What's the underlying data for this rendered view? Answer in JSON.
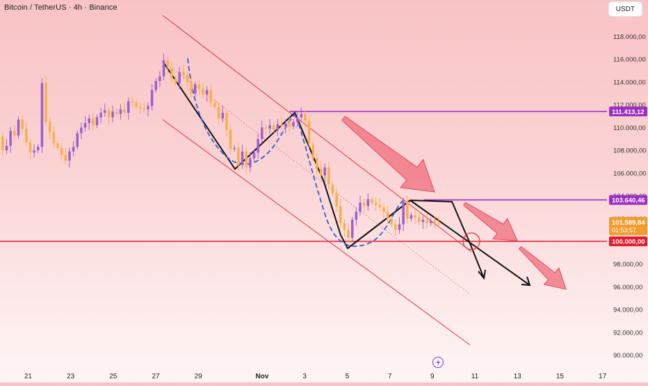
{
  "header": {
    "symbol": "Bitcoin / TetherUS · 4h · Binance",
    "currency_button": "USDT"
  },
  "colors": {
    "bull": "#9c5fd0",
    "bear": "#f5b04a",
    "channel": "#e2313f",
    "level_purple": "#9b2ec4",
    "level_red": "#e51c2e",
    "price_tag": "#f39c2f",
    "pattern_blue": "#2b5fd6",
    "arrow_pink": "#ef6a78"
  },
  "chart_data": {
    "type": "candlestick",
    "pair": "BTC/USDT",
    "timeframe": "4h",
    "exchange": "Binance",
    "x_axis": {
      "ticks": [
        "21",
        "23",
        "25",
        "27",
        "29",
        "Nov",
        "3",
        "5",
        "7",
        "9",
        "11",
        "13",
        "15",
        "17"
      ],
      "tick_days": [
        -10,
        -8,
        -6,
        -4,
        -2,
        1,
        3,
        5,
        7,
        9,
        11,
        13,
        15,
        17
      ]
    },
    "y_axis": {
      "range": [
        89000,
        120000
      ],
      "ticks": [
        90000,
        92000,
        94000,
        96000,
        98000,
        100000,
        102000,
        104000,
        106000,
        108000,
        110000,
        112000,
        114000,
        116000,
        118000
      ],
      "tick_labels": [
        "90.000,00",
        "92.000,00",
        "94.000,00",
        "96.000,00",
        "98.000,00",
        "100.000,00",
        "102.000,00",
        "104.000,00",
        "106.000,00",
        "108.000,00",
        "110.000,00",
        "112.000,00",
        "114.000,00",
        "116.000,00",
        "118.000,00"
      ]
    },
    "price_labels": [
      {
        "value": 111413.12,
        "label": "111.413,12",
        "color": "#9b2ec4"
      },
      {
        "value": 103640.46,
        "label": "103.640,46",
        "color": "#9b2ec4"
      },
      {
        "value": 100000.0,
        "label": "100.000,00",
        "color": "#e51c2e"
      }
    ],
    "current_price": {
      "value": 101589.84,
      "label": "101.589,84",
      "countdown": "01:53:57"
    },
    "horizontal_levels": [
      {
        "value": 111413.12,
        "start_day": 2.3,
        "color": "#9b2ec4"
      },
      {
        "value": 103640.46,
        "start_day": 8.6,
        "color": "#9b2ec4"
      },
      {
        "value": 100000.0,
        "start_day": -12,
        "color": "#e51c2e"
      }
    ],
    "candles_close": [
      108400,
      109000,
      109900,
      110600,
      111000,
      109200,
      108000,
      108400,
      109700,
      109300,
      110700,
      109900,
      108700,
      107800,
      108000,
      108300,
      113900,
      110500,
      109600,
      108600,
      108200,
      107600,
      107100,
      107900,
      108300,
      109500,
      110000,
      110400,
      110800,
      110200,
      110900,
      111300,
      111500,
      110900,
      111400,
      111200,
      111600,
      111300,
      112300,
      112200,
      111800,
      111700,
      111600,
      111900,
      113300,
      114100,
      114500,
      115900,
      115300,
      114300,
      113900,
      114900,
      114600,
      114000,
      113000,
      113800,
      113400,
      112900,
      113300,
      112200,
      111800,
      110800,
      111300,
      109800,
      108100,
      108200,
      106700,
      107900,
      106500,
      107300,
      107800,
      109000,
      110000,
      109900,
      110200,
      109800,
      110300,
      110100,
      110400,
      110100,
      110500,
      110900,
      111200,
      110600,
      108500,
      107300,
      106400,
      105800,
      106500,
      105000,
      104200,
      103100,
      101600,
      101000,
      100300,
      101900,
      102600,
      103400,
      103100,
      103700,
      103400,
      103200,
      103000,
      102600,
      102000,
      101500,
      101000,
      101500,
      103500,
      102000,
      102300,
      102100,
      101700,
      101900,
      101600,
      101800,
      101600,
      101589.84
    ],
    "annotations": [
      {
        "type": "channel_line",
        "label": "upper"
      },
      {
        "type": "channel_line",
        "label": "lower"
      },
      {
        "type": "channel_line",
        "label": "mid-dotted"
      },
      {
        "type": "zigzag",
        "label": "black pattern"
      },
      {
        "type": "zigzag",
        "label": "blue dashed W"
      },
      {
        "type": "arrow",
        "label": "pink down arrows"
      },
      {
        "type": "circle",
        "label": "target near 100.000,00"
      }
    ]
  }
}
